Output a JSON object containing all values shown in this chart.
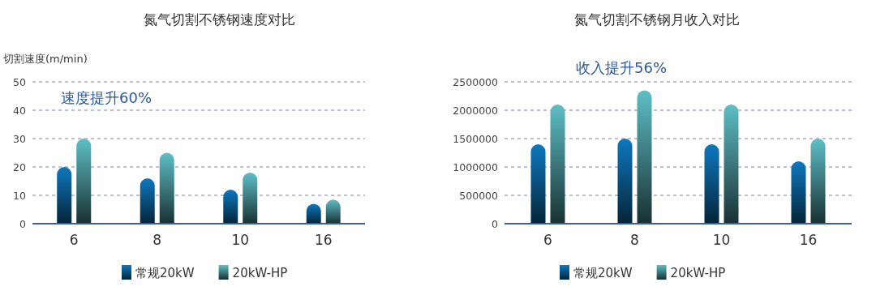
{
  "chart_data": [
    {
      "type": "bar",
      "title": "氮气切割不锈钢速度对比",
      "ylabel": "切割速度(m/min)",
      "categories": [
        "6",
        "8",
        "10",
        "16"
      ],
      "series": [
        {
          "name": "常规20kW",
          "color": "#0e78be",
          "values": [
            20,
            16,
            12,
            7
          ]
        },
        {
          "name": "20kW-HP",
          "color": "#5ebfc6",
          "values": [
            30,
            25,
            18,
            8.5
          ]
        }
      ],
      "ylim": [
        0,
        50
      ],
      "yticks": [
        0,
        10,
        20,
        30,
        40,
        50
      ],
      "grid": "y",
      "legend": "bottom",
      "annotations": [
        "速度提升60%"
      ]
    },
    {
      "type": "bar",
      "title": "氮气切割不锈钢月收入对比",
      "categories": [
        "6",
        "8",
        "10",
        "16"
      ],
      "series": [
        {
          "name": "常规20kW",
          "color": "#0e78be",
          "values": [
            1400000,
            1500000,
            1400000,
            1100000
          ]
        },
        {
          "name": "20kW-HP",
          "color": "#5ebfc6",
          "values": [
            2100000,
            2350000,
            2100000,
            1500000
          ]
        }
      ],
      "ylim": [
        0,
        2500000
      ],
      "yticks": [
        0,
        500000,
        1000000,
        1500000,
        2000000,
        2500000
      ],
      "grid": "y",
      "legend": "bottom",
      "annotations": [
        "收入提升56%"
      ]
    }
  ]
}
